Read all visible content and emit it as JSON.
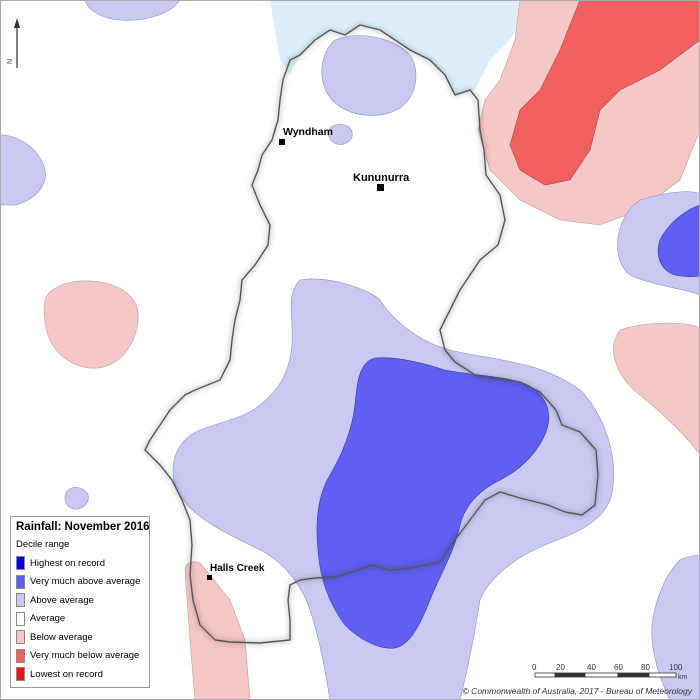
{
  "map": {
    "places": [
      {
        "name": "Wyndham"
      },
      {
        "name": "Kununurra"
      },
      {
        "name": "Halls Creek"
      }
    ],
    "north_label": "N",
    "scale_bar": {
      "ticks": [
        "0",
        "20",
        "40",
        "60",
        "80",
        "100"
      ],
      "unit": "km"
    },
    "copyright": "© Commonwealth of Australia, 2017 - Bureau of Meteorology"
  },
  "legend": {
    "title": "Rainfall: November 2016",
    "subtitle": "Decile range",
    "items": [
      {
        "label": "Highest on record",
        "color": "#0000dd"
      },
      {
        "label": "Very much above average",
        "color": "#5f5ff2"
      },
      {
        "label": "Above average",
        "color": "#c9c9f4"
      },
      {
        "label": "Average",
        "color": "#ffffff"
      },
      {
        "label": "Below average",
        "color": "#f6c7c7"
      },
      {
        "label": "Very much below average",
        "color": "#f25f5f"
      },
      {
        "label": "Lowest on record",
        "color": "#e01818"
      }
    ]
  },
  "colors": {
    "sea": "#ddeefa",
    "above_average": "#c9c9f4",
    "very_much_above_average": "#5f5ff2",
    "below_average": "#f6c7c7",
    "very_much_below_average": "#f25f5f"
  }
}
